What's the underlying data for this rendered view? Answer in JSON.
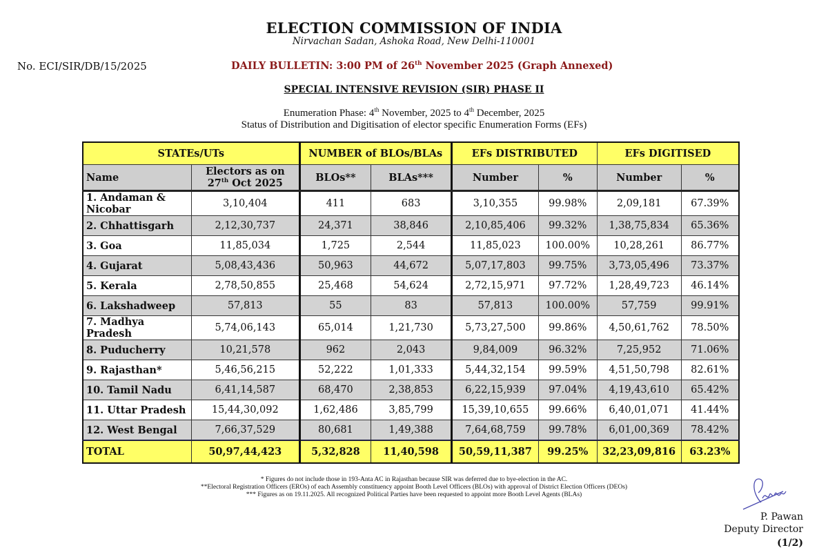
{
  "header": {
    "title": "ELECTION COMMISSION OF INDIA",
    "address": "Nirvachan Sadan, Ashoka Road, New Delhi-110001",
    "reference_no": "No. ECI/SIR/DB/15/2025",
    "bulletin_pre": "DAILY BULLETIN: 3:00 PM of 26",
    "bulletin_sup": "th",
    "bulletin_post": " November 2025 (Graph Annexed)",
    "subject": "SPECIAL INTENSIVE REVISION (SIR) PHASE II",
    "enum_1": "Enumeration Phase: 4",
    "enum_sup1": "th",
    "enum_2": " November, 2025 to 4",
    "enum_sup2": "th",
    "enum_3": " December, 2025",
    "status_line": "Status of Distribution and Digitisation of elector specific Enumeration Forms (EFs)"
  },
  "table": {
    "group_headers": [
      "STATEs/UTs",
      "NUMBER of BLOs/BLAs",
      "EFs DISTRIBUTED",
      "EFs DIGITISED"
    ],
    "col_name": "Name",
    "col_electors_1": "Electors as on",
    "col_electors_2a": "27",
    "col_electors_sup": "th",
    "col_electors_2b": " Oct 2025",
    "col_blos": "BLOs**",
    "col_blas": "BLAs***",
    "col_dist_number": "Number",
    "col_dist_pct": "%",
    "col_dig_number": "Number",
    "col_dig_pct": "%",
    "rows": [
      {
        "name": "1.  Andaman & Nicobar",
        "electors": "3,10,404",
        "blos": "411",
        "blas": "683",
        "dist": "3,10,355",
        "dist_pct": "99.98%",
        "dig": "2,09,181",
        "dig_pct": "67.39%"
      },
      {
        "name": "2.  Chhattisgarh",
        "electors": "2,12,30,737",
        "blos": "24,371",
        "blas": "38,846",
        "dist": "2,10,85,406",
        "dist_pct": "99.32%",
        "dig": "1,38,75,834",
        "dig_pct": "65.36%"
      },
      {
        "name": "3.  Goa",
        "electors": "11,85,034",
        "blos": "1,725",
        "blas": "2,544",
        "dist": "11,85,023",
        "dist_pct": "100.00%",
        "dig": "10,28,261",
        "dig_pct": "86.77%"
      },
      {
        "name": "4.  Gujarat",
        "electors": "5,08,43,436",
        "blos": "50,963",
        "blas": "44,672",
        "dist": "5,07,17,803",
        "dist_pct": "99.75%",
        "dig": "3,73,05,496",
        "dig_pct": "73.37%"
      },
      {
        "name": "5.  Kerala",
        "electors": "2,78,50,855",
        "blos": "25,468",
        "blas": "54,624",
        "dist": "2,72,15,971",
        "dist_pct": "97.72%",
        "dig": "1,28,49,723",
        "dig_pct": "46.14%"
      },
      {
        "name": "6.  Lakshadweep",
        "electors": "57,813",
        "blos": "55",
        "blas": "83",
        "dist": "57,813",
        "dist_pct": "100.00%",
        "dig": "57,759",
        "dig_pct": "99.91%"
      },
      {
        "name": "7.  Madhya Pradesh",
        "electors": "5,74,06,143",
        "blos": "65,014",
        "blas": "1,21,730",
        "dist": "5,73,27,500",
        "dist_pct": "99.86%",
        "dig": "4,50,61,762",
        "dig_pct": "78.50%"
      },
      {
        "name": "8.  Puducherry",
        "electors": "10,21,578",
        "blos": "962",
        "blas": "2,043",
        "dist": "9,84,009",
        "dist_pct": "96.32%",
        "dig": "7,25,952",
        "dig_pct": "71.06%"
      },
      {
        "name": "9.  Rajasthan*",
        "electors": "5,46,56,215",
        "blos": "52,222",
        "blas": "1,01,333",
        "dist": "5,44,32,154",
        "dist_pct": "99.59%",
        "dig": "4,51,50,798",
        "dig_pct": "82.61%"
      },
      {
        "name": "10. Tamil Nadu",
        "electors": "6,41,14,587",
        "blos": "68,470",
        "blas": "2,38,853",
        "dist": "6,22,15,939",
        "dist_pct": "97.04%",
        "dig": "4,19,43,610",
        "dig_pct": "65.42%"
      },
      {
        "name": "11. Uttar Pradesh",
        "electors": "15,44,30,092",
        "blos": "1,62,486",
        "blas": "3,85,799",
        "dist": "15,39,10,655",
        "dist_pct": "99.66%",
        "dig": "6,40,01,071",
        "dig_pct": "41.44%"
      },
      {
        "name": "12. West Bengal",
        "electors": "7,66,37,529",
        "blos": "80,681",
        "blas": "1,49,388",
        "dist": "7,64,68,759",
        "dist_pct": "99.78%",
        "dig": "6,01,00,369",
        "dig_pct": "78.42%"
      }
    ],
    "total": {
      "name": "TOTAL",
      "electors": "50,97,44,423",
      "blos": "5,32,828",
      "blas": "11,40,598",
      "dist": "50,59,11,387",
      "dist_pct": "99.25%",
      "dig": "32,23,09,816",
      "dig_pct": "63.23%"
    }
  },
  "footnotes": [
    "* Figures do not include those in 193-Anta AC in Rajasthan because SIR was deferred due to bye-election in the AC.",
    "**Electoral Registration Officers (EROs) of each Assembly constituency appoint Booth Level Officers (BLOs) with approval of District Election Officers (DEOs)",
    "*** Figures as on 19.11.2025. All recognized Political Parties have been requested to appoint more Booth Level Agents (BLAs)"
  ],
  "signatory": {
    "name": "P. Pawan",
    "designation": "Deputy Director",
    "page": "(1/2)"
  },
  "colors": {
    "highlight": "#ffff66",
    "grey_row": "#d3d3d3",
    "bulletin": "#8b1a1a",
    "signature_ink": "#4a4ab0"
  }
}
